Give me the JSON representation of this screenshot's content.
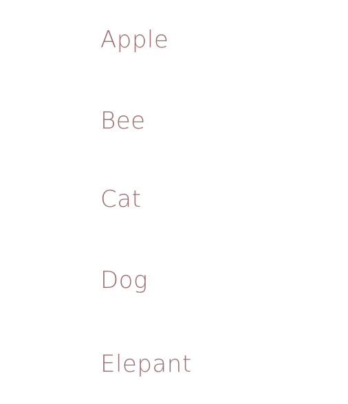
{
  "list": {
    "items": [
      {
        "label": "Apple"
      },
      {
        "label": "Bee"
      },
      {
        "label": "Cat"
      },
      {
        "label": "Dog"
      },
      {
        "label": "Elepant"
      }
    ]
  },
  "colors": {
    "text": "#9b6e72",
    "background": "#ffffff"
  }
}
